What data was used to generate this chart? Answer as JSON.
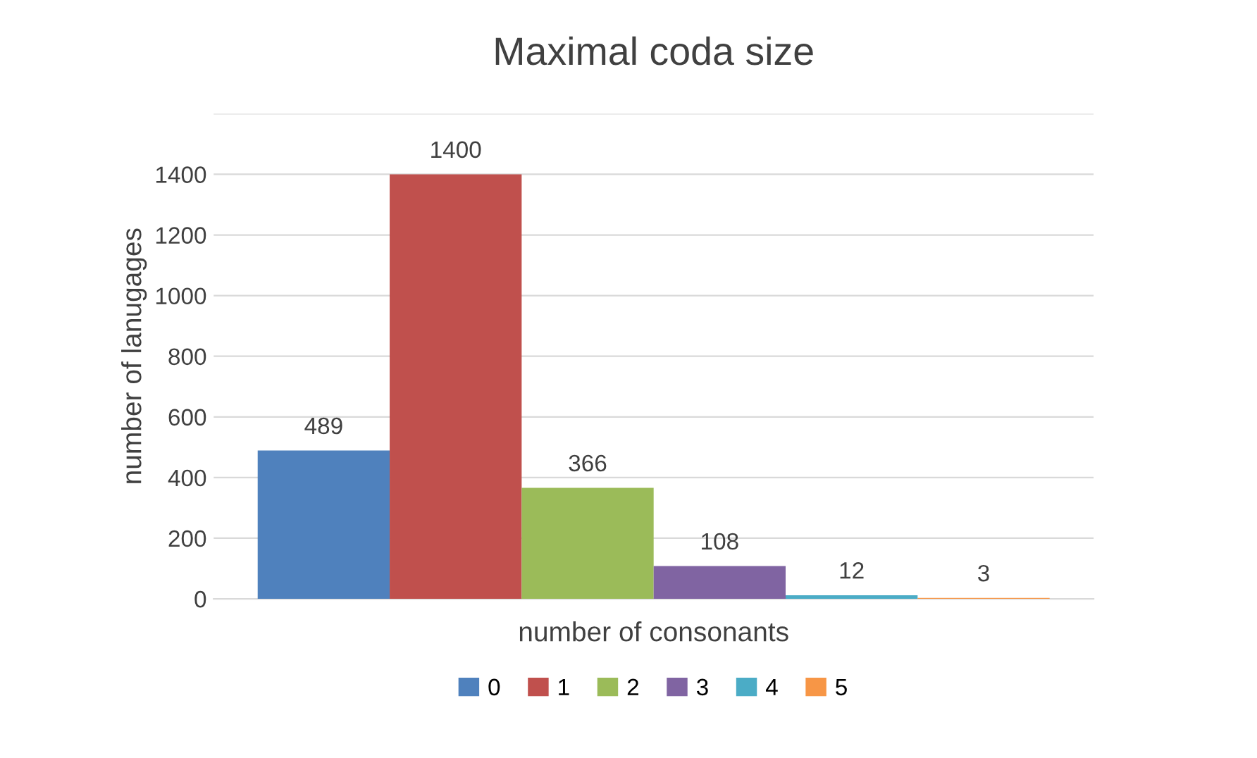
{
  "chart_data": {
    "type": "bar",
    "title": "Maximal coda size",
    "xlabel": "number of consonants",
    "ylabel": "number of lanugages",
    "categories": [
      null
    ],
    "series": [
      {
        "name": "0",
        "color": "#4f81bd",
        "values": [
          489
        ]
      },
      {
        "name": "1",
        "color": "#c0504d",
        "values": [
          1400
        ]
      },
      {
        "name": "2",
        "color": "#9bbb59",
        "values": [
          366
        ]
      },
      {
        "name": "3",
        "color": "#8064a2",
        "values": [
          108
        ]
      },
      {
        "name": "4",
        "color": "#4bacc6",
        "values": [
          12
        ]
      },
      {
        "name": "5",
        "color": "#f79646",
        "values": [
          3
        ]
      }
    ],
    "ylim": [
      0,
      1600
    ],
    "yticks": [
      0,
      200,
      400,
      600,
      800,
      1000,
      1200,
      1400,
      {
        "value": 1600,
        "label": null
      }
    ],
    "grid": "y",
    "legend": "bottom",
    "data_labels": true
  }
}
